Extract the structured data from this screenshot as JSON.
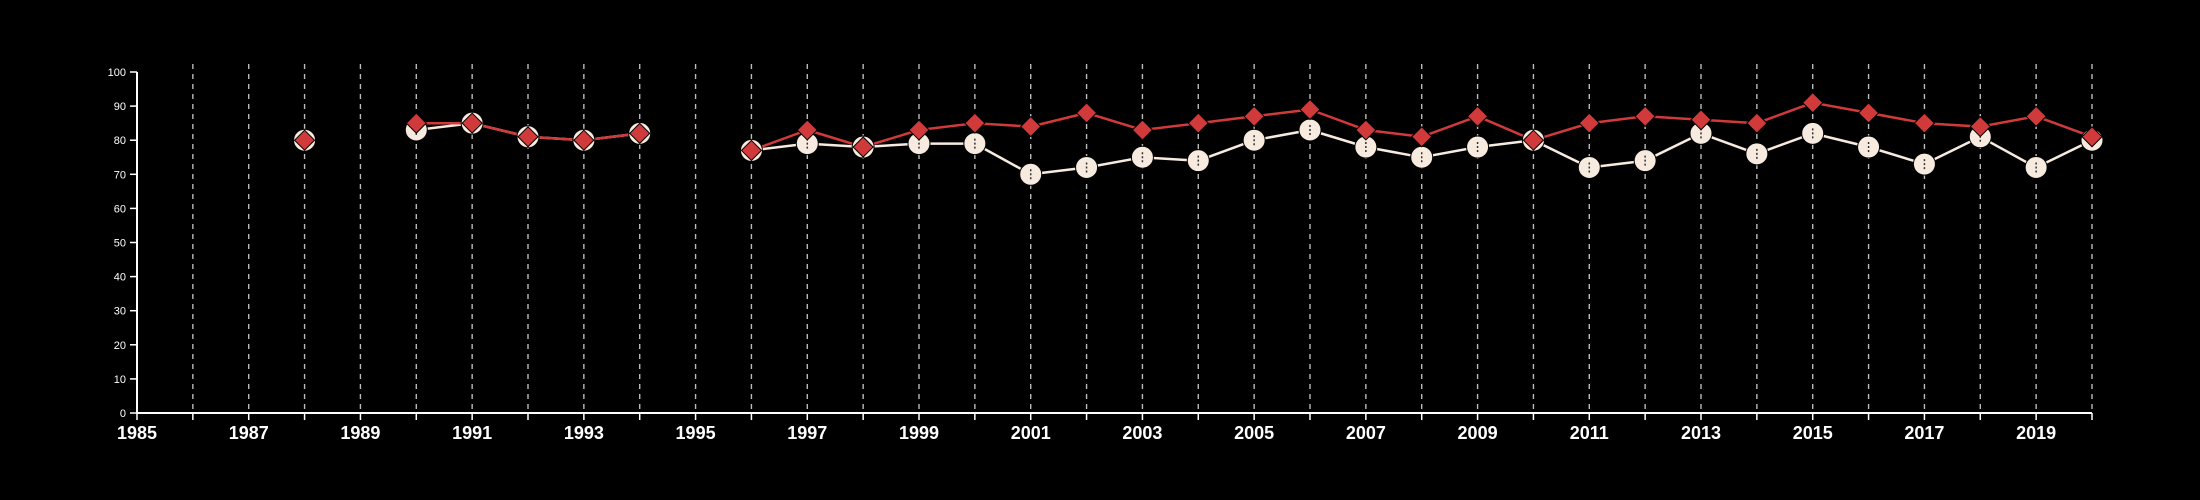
{
  "chart_data": {
    "type": "line",
    "title": "",
    "xlabel": "",
    "ylabel": "",
    "xlim": [
      1985,
      2020
    ],
    "ylim": [
      0,
      100
    ],
    "y_ticks": [
      0,
      10,
      20,
      30,
      40,
      50,
      60,
      70,
      80,
      90,
      100
    ],
    "x_tick_labels": [
      1985,
      1987,
      1989,
      1991,
      1993,
      1995,
      1997,
      1999,
      2001,
      2003,
      2005,
      2007,
      2009,
      2011,
      2013,
      2015,
      2017,
      2019
    ],
    "vertical_gridlines": [
      1986,
      1987,
      1988,
      1989,
      1990,
      1991,
      1992,
      1993,
      1994,
      1995,
      1996,
      1997,
      1998,
      1999,
      2000,
      2001,
      2002,
      2003,
      2004,
      2005,
      2006,
      2007,
      2008,
      2009,
      2010,
      2011,
      2012,
      2013,
      2014,
      2015,
      2016,
      2017,
      2018,
      2019,
      2020
    ],
    "background_color": "#000000",
    "series": [
      {
        "marker": "circle",
        "color": "#f7ebe0",
        "points": [
          [
            1988,
            80
          ],
          [
            1990,
            83
          ],
          [
            1991,
            85
          ],
          [
            1992,
            81
          ],
          [
            1993,
            80
          ],
          [
            1994,
            82
          ],
          [
            1996,
            77
          ],
          [
            1997,
            79
          ],
          [
            1998,
            78
          ],
          [
            1999,
            79
          ],
          [
            2000,
            79
          ],
          [
            2001,
            70
          ],
          [
            2002,
            72
          ],
          [
            2003,
            75
          ],
          [
            2004,
            74
          ],
          [
            2005,
            80
          ],
          [
            2006,
            83
          ],
          [
            2007,
            78
          ],
          [
            2008,
            75
          ],
          [
            2009,
            78
          ],
          [
            2010,
            80
          ],
          [
            2011,
            72
          ],
          [
            2012,
            74
          ],
          [
            2013,
            82
          ],
          [
            2014,
            76
          ],
          [
            2015,
            82
          ],
          [
            2016,
            78
          ],
          [
            2017,
            73
          ],
          [
            2018,
            81
          ],
          [
            2019,
            72
          ],
          [
            2020,
            80
          ]
        ]
      },
      {
        "marker": "diamond",
        "color": "#d03a3a",
        "points": [
          [
            1988,
            80
          ],
          [
            1990,
            85
          ],
          [
            1991,
            85
          ],
          [
            1992,
            81
          ],
          [
            1993,
            80
          ],
          [
            1994,
            82
          ],
          [
            1996,
            77
          ],
          [
            1997,
            83
          ],
          [
            1998,
            78
          ],
          [
            1999,
            83
          ],
          [
            2000,
            85
          ],
          [
            2001,
            84
          ],
          [
            2002,
            88
          ],
          [
            2003,
            83
          ],
          [
            2004,
            85
          ],
          [
            2005,
            87
          ],
          [
            2006,
            89
          ],
          [
            2007,
            83
          ],
          [
            2008,
            81
          ],
          [
            2009,
            87
          ],
          [
            2010,
            80
          ],
          [
            2011,
            85
          ],
          [
            2012,
            87
          ],
          [
            2013,
            86
          ],
          [
            2014,
            85
          ],
          [
            2015,
            91
          ],
          [
            2016,
            88
          ],
          [
            2017,
            85
          ],
          [
            2018,
            84
          ],
          [
            2019,
            87
          ],
          [
            2020,
            81
          ]
        ]
      }
    ]
  }
}
